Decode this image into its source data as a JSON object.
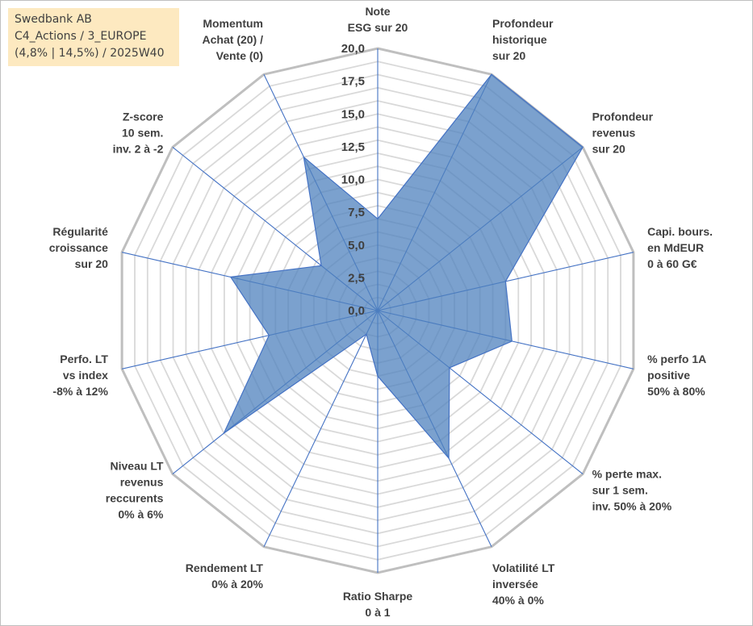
{
  "info_box": {
    "line1": "Swedbank AB",
    "line2": "C4_Actions / 3_EUROPE",
    "line3": "(4,8% | 14,5%) / 2025W40",
    "background": "#fde9c0"
  },
  "chart_data": {
    "type": "radar",
    "title": "Swedbank AB",
    "axes": [
      [
        "Note",
        "ESG sur 20"
      ],
      [
        "Profondeur",
        "historique",
        "sur 20"
      ],
      [
        "Profondeur",
        "revenus",
        "sur 20"
      ],
      [
        "Capi. bours.",
        "en MdEUR",
        "0 à 60 G€"
      ],
      [
        "% perfo 1A",
        "positive",
        "50% à 80%"
      ],
      [
        "% perte max.",
        "sur 1 sem.",
        "inv. 50% à 20%"
      ],
      [
        "Volatilité LT",
        "inversée",
        "40% à 0%"
      ],
      [
        "Ratio Sharpe",
        "0 à 1"
      ],
      [
        "Rendement LT",
        "0% à 20%"
      ],
      [
        "Niveau LT",
        "revenus",
        "reccurents",
        "0% à 6%"
      ],
      [
        "Perfo. LT",
        "vs index",
        "-8% à 12%"
      ],
      [
        "Régularité",
        "croissance",
        "sur 20"
      ],
      [
        "Z-score",
        "10 sem.",
        "inv. 2 à -2"
      ],
      [
        "Momentum",
        "Achat (20) /",
        "Vente (0)"
      ]
    ],
    "series": [
      {
        "name": "Swedbank AB",
        "values": [
          7.0,
          20.0,
          20.0,
          10.0,
          10.5,
          7.0,
          12.5,
          5.0,
          2.0,
          15.0,
          8.5,
          11.5,
          5.5,
          13.0
        ],
        "fill": "#4f81bd",
        "stroke": "#4472c4"
      }
    ],
    "rlim": [
      0,
      20
    ],
    "ticks": [
      "0,0",
      "2,5",
      "5,0",
      "7,5",
      "10,0",
      "12,5",
      "15,0",
      "17,5",
      "20,0"
    ],
    "tick_values": [
      0,
      2.5,
      5,
      7.5,
      10,
      12.5,
      15,
      17.5,
      20
    ],
    "grid": true,
    "legend": "none",
    "colors": {
      "grid": "#d9d9d9",
      "outer_ring": "#bfbfbf",
      "spokes": "#4472c4",
      "text": "#404040"
    }
  }
}
